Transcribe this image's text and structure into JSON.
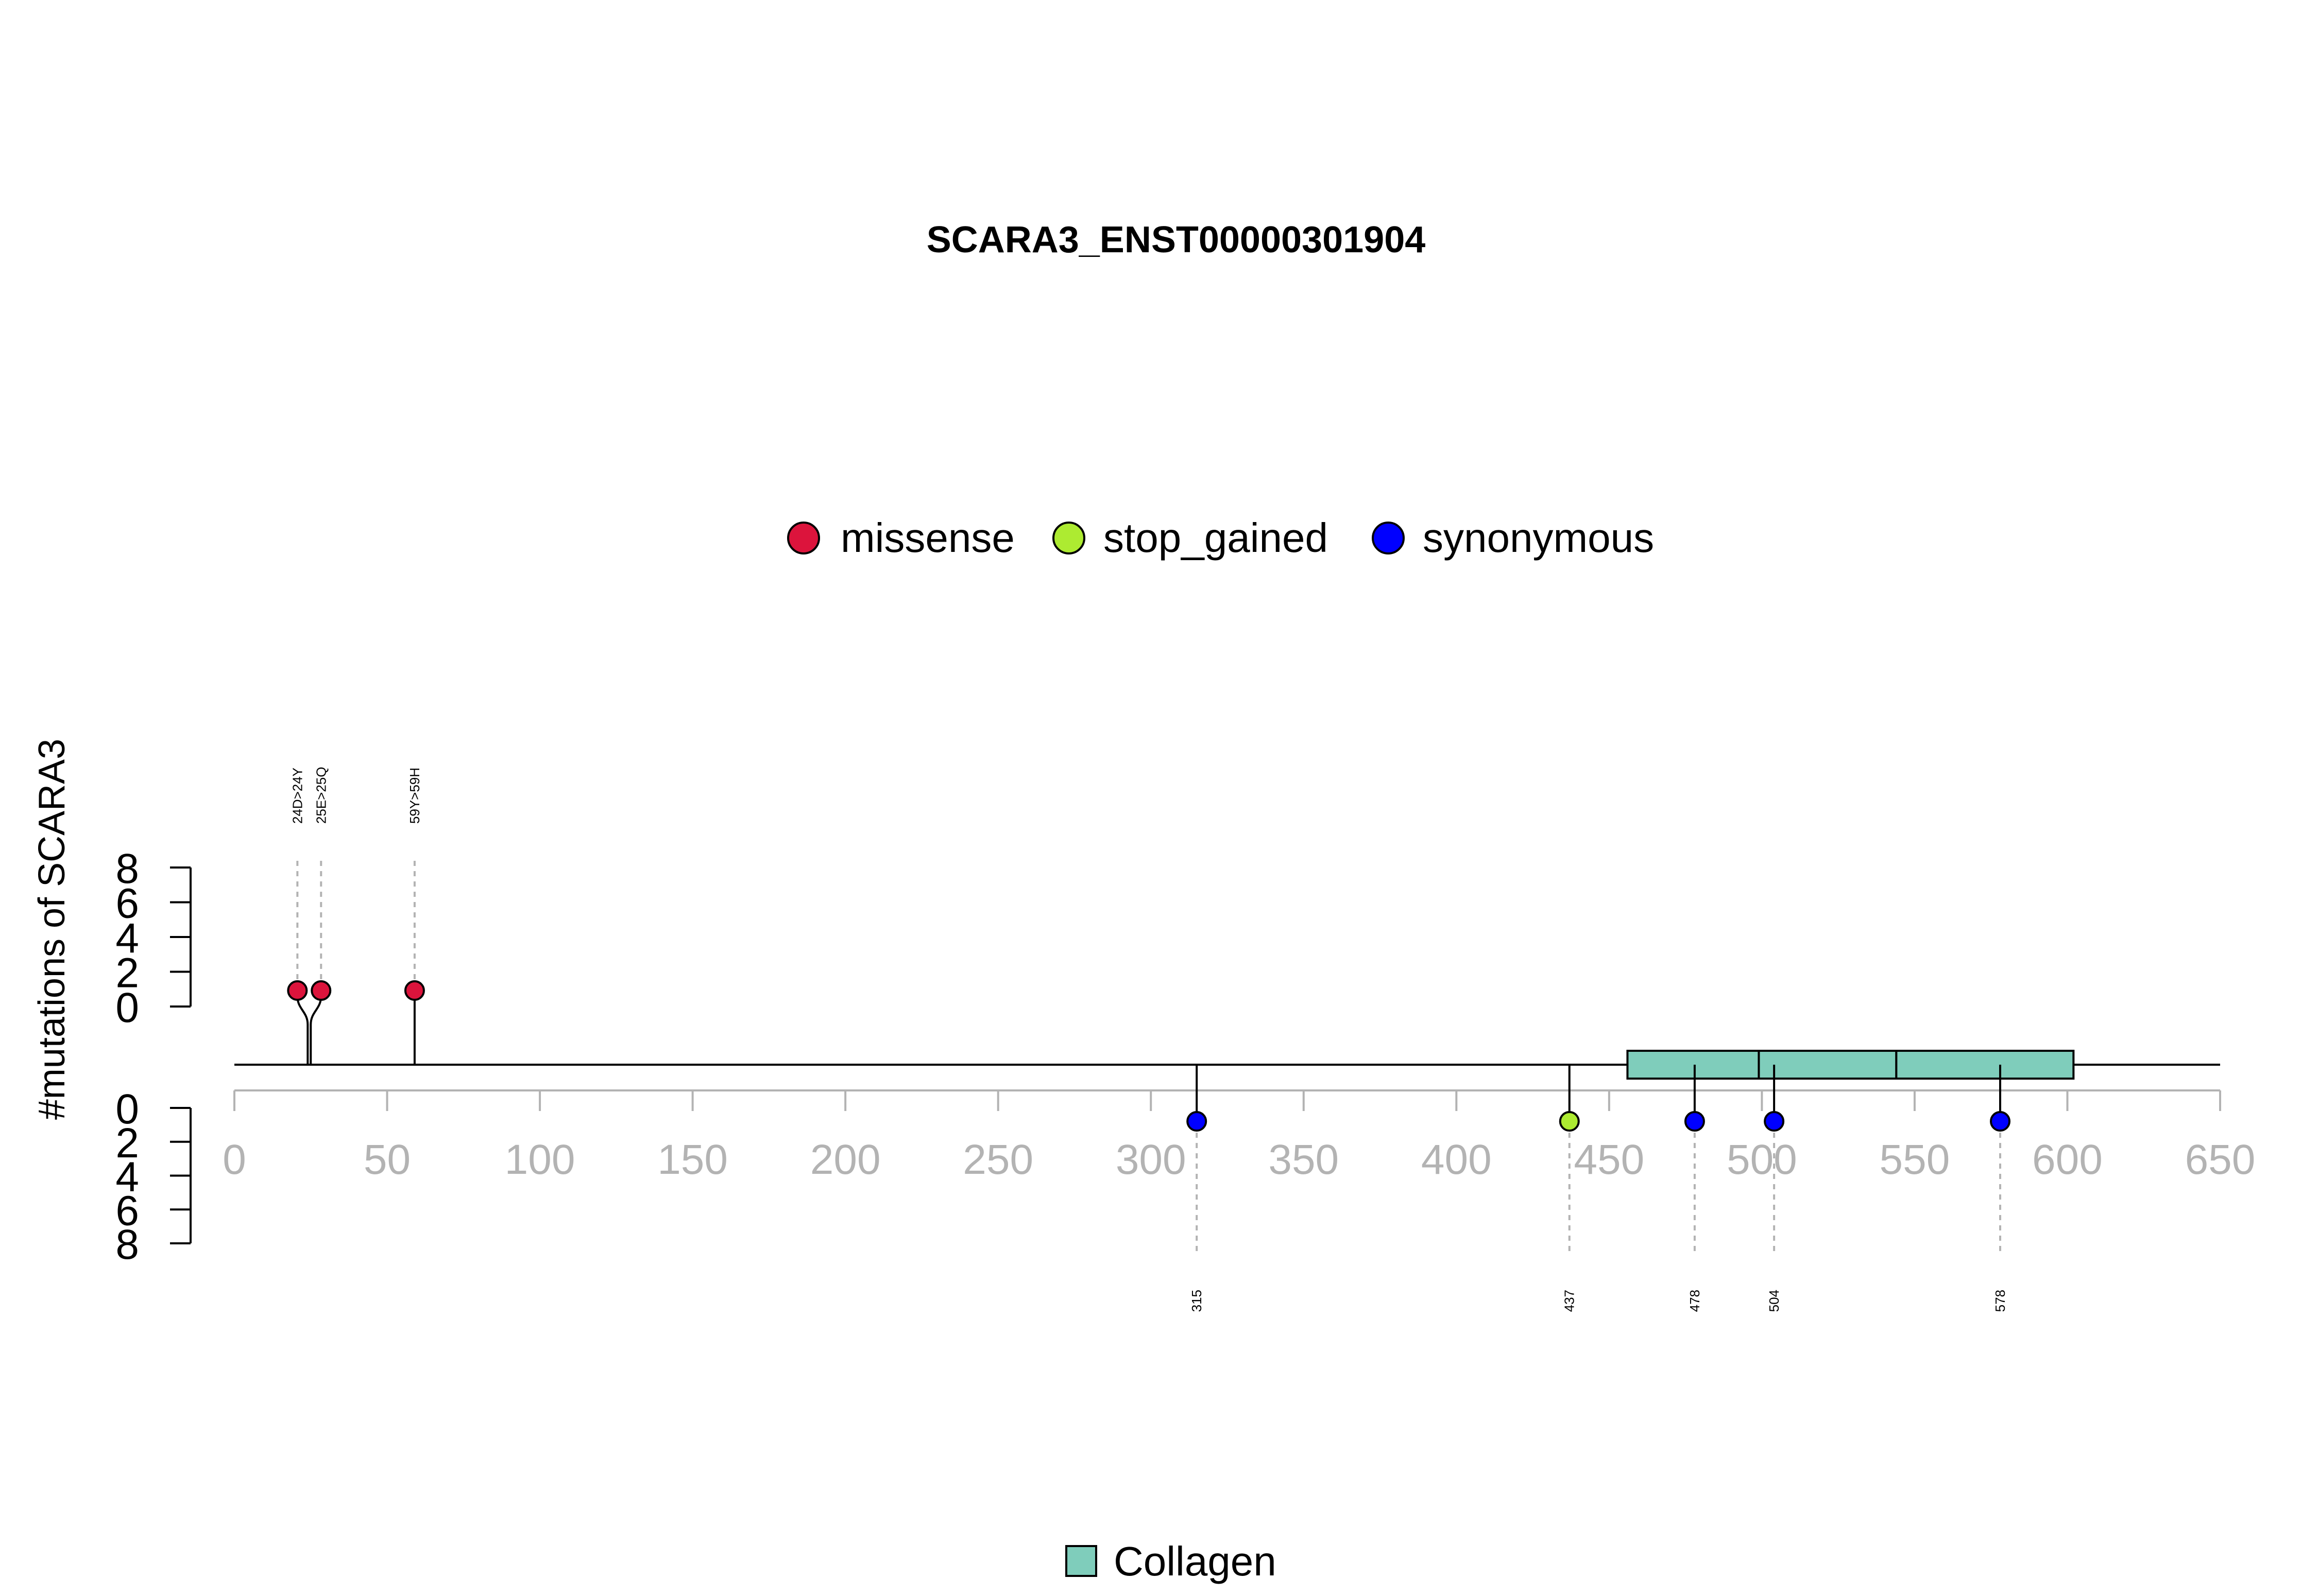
{
  "chart_data": {
    "type": "lollipop",
    "title": "SCARA3_ENST00000301904",
    "ylabel": "#mutations of SCARA3",
    "xlim": [
      0,
      650
    ],
    "x_ticks": [
      0,
      50,
      100,
      150,
      200,
      250,
      300,
      350,
      400,
      450,
      500,
      550,
      600,
      650
    ],
    "y_ticks_top": [
      0,
      2,
      4,
      6,
      8
    ],
    "y_ticks_bottom": [
      0,
      2,
      4,
      6,
      8
    ],
    "ylim": [
      0,
      8
    ],
    "protein_length": 606,
    "legend_top": [
      {
        "label": "missense",
        "color": "#DC143C"
      },
      {
        "label": "stop_gained",
        "color": "#ADEB31"
      },
      {
        "label": "synonymous",
        "color": "#0000FF"
      }
    ],
    "legend_bottom": [
      {
        "label": "Collagen",
        "color": "#7FCDBB"
      }
    ],
    "top_mutations": [
      {
        "pos": 24,
        "label": "24D>24Y",
        "type": "missense",
        "count": 1
      },
      {
        "pos": 25,
        "label": "25E>25Q",
        "type": "missense",
        "count": 1
      },
      {
        "pos": 59,
        "label": "59Y>59H",
        "type": "missense",
        "count": 1
      }
    ],
    "bottom_mutations": [
      {
        "pos": 315,
        "label": "315",
        "type": "synonymous",
        "count": 1
      },
      {
        "pos": 437,
        "label": "437",
        "type": "stop_gained",
        "count": 1
      },
      {
        "pos": 478,
        "label": "478",
        "type": "synonymous",
        "count": 1
      },
      {
        "pos": 504,
        "label": "504",
        "type": "synonymous",
        "count": 1
      },
      {
        "pos": 578,
        "label": "578",
        "type": "synonymous",
        "count": 1
      }
    ],
    "domains": [
      {
        "name": "Collagen",
        "start": 456,
        "end": 499
      },
      {
        "name": "Collagen",
        "start": 499,
        "end": 544
      },
      {
        "name": "Collagen",
        "start": 544,
        "end": 602
      }
    ]
  }
}
